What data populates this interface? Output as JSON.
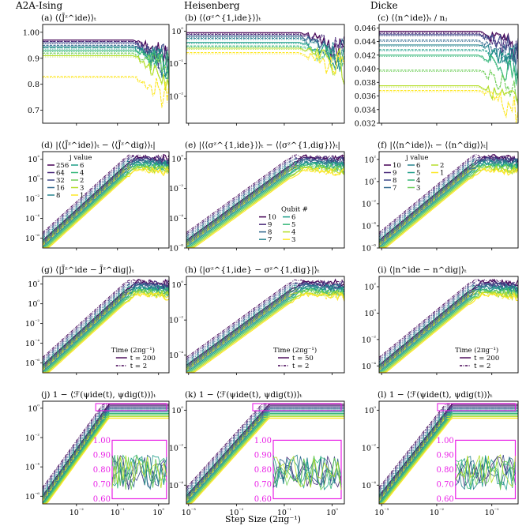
{
  "figure": {
    "x_label": "Step Size (2πg⁻¹)",
    "column_headers": [
      "A2A-Ising",
      "Heisenberg",
      "Dicke"
    ]
  },
  "colors": {
    "viridis": [
      "#440154",
      "#482878",
      "#3e4989",
      "#31688e",
      "#26828e",
      "#1f9e89",
      "#35b779",
      "#6ece58",
      "#b5de2b",
      "#fde725"
    ],
    "inset_frame": "#e91ee6"
  },
  "legends": {
    "d": {
      "title": "j value",
      "entries": [
        "256",
        "64",
        "32",
        "16",
        "8",
        "6",
        "4",
        "2",
        "3",
        "1"
      ]
    },
    "e": {
      "title": "Qubit #",
      "entries": [
        "10",
        "9",
        "8",
        "7",
        "6",
        "5",
        "4",
        "3"
      ]
    },
    "f": {
      "title": "j value",
      "entries": [
        "10",
        "9",
        "8",
        "7",
        "6",
        "5",
        "4",
        "3",
        "2",
        "1"
      ]
    },
    "g": {
      "title": "Time (2πg⁻¹)",
      "entries": [
        "t = 200",
        "t = 2"
      ]
    },
    "h": {
      "title": "Time (2πg⁻¹)",
      "entries": [
        "t = 50",
        "t = 2"
      ]
    },
    "i": {
      "title": "Time (2πg⁻¹)",
      "entries": [
        "t = 200",
        "t = 2"
      ]
    }
  },
  "chart_data": [
    {
      "id": "a",
      "type": "line",
      "title": "(a) ⟨⟨J̄ᶻ^ide⟩⟩ₜ",
      "column": "A2A-Ising",
      "xscale": "log",
      "xlim": [
        0.0015,
        1.8
      ],
      "yscale": "linear",
      "ylim": [
        0.65,
        1.03
      ],
      "yticks": [
        "0.7",
        "0.8",
        "0.9",
        "1.00"
      ],
      "xticks": [],
      "series_values": [
        0.97,
        0.965,
        0.96,
        0.95,
        0.945,
        0.94,
        0.93,
        0.92,
        0.91,
        0.83
      ]
    },
    {
      "id": "b",
      "type": "line",
      "title": "(b) ⟨⟨σᶻ^{1,ide}⟩⟩ₜ",
      "column": "Heisenberg",
      "xscale": "log",
      "xlim": [
        0.0009,
        1.8
      ],
      "yscale": "log",
      "ylim": [
        0.0015,
        1.6
      ],
      "yticks": [
        "10⁻²",
        "10⁻¹",
        "10⁰"
      ],
      "xticks": [],
      "series_values": [
        0.9,
        0.8,
        0.7,
        0.6,
        0.45,
        0.35,
        0.3,
        0.22
      ]
    },
    {
      "id": "c",
      "type": "line",
      "title": "(c) ⟨⟨n^ide⟩⟩ₜ / nⱼ",
      "column": "Dicke",
      "xscale": "log",
      "xlim": [
        0.0009,
        0.3
      ],
      "yscale": "linear",
      "ylim": [
        0.032,
        0.0465
      ],
      "yticks": [
        "0.032",
        "0.034",
        "0.036",
        "0.038",
        "0.040",
        "0.042",
        "0.044",
        "0.046"
      ],
      "xticks": [],
      "series_values": [
        0.0455,
        0.0452,
        0.045,
        0.0442,
        0.0435,
        0.0428,
        0.042,
        0.0398,
        0.0375,
        0.0368
      ]
    },
    {
      "id": "d",
      "type": "line",
      "title": "(d) |⟨⟨J̄ᶻ^ide⟩⟩ₜ − ⟨⟨J̄ᶻ^dig⟩⟩ₜ|",
      "column": "A2A-Ising",
      "xscale": "log",
      "xlim": [
        0.0015,
        1.8
      ],
      "yscale": "log",
      "ylim": [
        1e-07,
        600
      ],
      "yticks": [
        "10⁻⁶",
        "10⁻⁴",
        "10⁻²",
        "10⁰",
        "10²"
      ],
      "xticks": []
    },
    {
      "id": "e",
      "type": "line",
      "title": "(e) |⟨⟨σᶻ^{1,ide}⟩⟩ₜ − ⟨⟨σᶻ^{1,dig}⟩⟩ₜ|",
      "column": "Heisenberg",
      "xscale": "log",
      "xlim": [
        0.0009,
        1.8
      ],
      "yscale": "log",
      "ylim": [
        1e-06,
        3
      ],
      "yticks": [
        "10⁻⁶",
        "10⁻⁴",
        "10⁻²",
        "10⁰"
      ],
      "xticks": []
    },
    {
      "id": "f",
      "type": "line",
      "title": "(f) |⟨⟨n^ide⟩⟩ₜ − ⟨⟨n^dig⟩⟩ₜ|",
      "column": "Dicke",
      "xscale": "log",
      "xlim": [
        0.0009,
        0.3
      ],
      "yscale": "log",
      "ylim": [
        1e-06,
        500
      ],
      "yticks": [
        "10⁻⁶",
        "10⁻⁴",
        "10⁻²",
        "10⁰",
        "10²"
      ],
      "xticks": []
    },
    {
      "id": "g",
      "type": "line",
      "title": "(g) ⟨|J̄ᶻ^ide − J̄ᶻ^dig|⟩ₜ",
      "column": "A2A-Ising",
      "xscale": "log",
      "xlim": [
        0.0015,
        1.8
      ],
      "yscale": "log",
      "ylim": [
        1e-07,
        600
      ],
      "yticks": [
        "10⁻⁶",
        "10⁻⁴",
        "10⁻²",
        "10⁰",
        "10²"
      ],
      "xticks": []
    },
    {
      "id": "h",
      "type": "line",
      "title": "(h) ⟨|σᶻ^{1,ide} − σᶻ^{1,dig}|⟩ₜ",
      "column": "Heisenberg",
      "xscale": "log",
      "xlim": [
        0.0009,
        1.8
      ],
      "yscale": "log",
      "ylim": [
        1e-05,
        3
      ],
      "yticks": [
        "10⁻⁴",
        "10⁻²",
        "10⁰"
      ],
      "xticks": []
    },
    {
      "id": "i",
      "type": "line",
      "title": "(i) ⟨|n^ide − n^dig|⟩ₜ",
      "column": "Dicke",
      "xscale": "log",
      "xlim": [
        0.0009,
        0.3
      ],
      "yscale": "log",
      "ylim": [
        3e-05,
        600
      ],
      "yticks": [
        "10⁻⁴",
        "10⁻²",
        "10⁰",
        "10²"
      ],
      "xticks": []
    },
    {
      "id": "j",
      "type": "line",
      "title": "(j) 1 − ⟨ℱ(ψide(t), ψdig(t))⟩ₜ",
      "column": "A2A-Ising",
      "xscale": "log",
      "xlim": [
        0.0015,
        1.8
      ],
      "yscale": "log",
      "ylim": [
        3e-07,
        3
      ],
      "yticks": [
        "10⁻⁶",
        "10⁻⁴",
        "10⁻²",
        "10⁰"
      ],
      "xticks": [
        "10⁻²",
        "10⁻¹",
        "10⁰"
      ],
      "inset": {
        "yticks": [
          "0.60",
          "0.70",
          "0.80",
          "0.90",
          "1.00"
        ]
      }
    },
    {
      "id": "k",
      "type": "line",
      "title": "(k) 1 − ⟨ℱ(ψide(t), ψdig(t))⟩ₜ",
      "column": "Heisenberg",
      "xscale": "log",
      "xlim": [
        0.0009,
        1.8
      ],
      "yscale": "log",
      "ylim": [
        1e-05,
        3
      ],
      "yticks": [
        "10⁻⁴",
        "10⁻²",
        "10⁰"
      ],
      "xticks": [
        "10⁻³",
        "10⁻²",
        "10⁻¹",
        "10⁰"
      ],
      "inset": {
        "yticks": [
          "0.60",
          "0.70",
          "0.80",
          "0.90",
          "1.00"
        ]
      }
    },
    {
      "id": "l",
      "type": "line",
      "title": "(l) 1 − ⟨ℱ(ψide(t), ψdig(t))⟩ₜ",
      "column": "Dicke",
      "xscale": "log",
      "xlim": [
        0.0009,
        0.3
      ],
      "yscale": "log",
      "ylim": [
        1e-05,
        3
      ],
      "yticks": [
        "10⁻⁴",
        "10⁻²",
        "10⁰"
      ],
      "xticks": [
        "10⁻³",
        "10⁻²",
        "10⁻¹"
      ],
      "inset": {
        "yticks": [
          "0.60",
          "0.70",
          "0.80",
          "0.90",
          "1.00"
        ]
      }
    }
  ]
}
